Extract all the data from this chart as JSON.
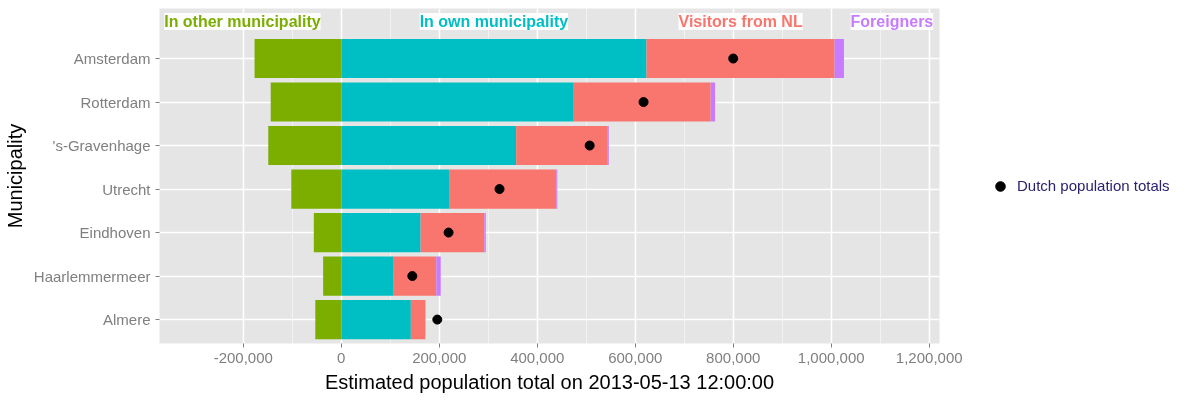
{
  "chart_data": {
    "type": "bar",
    "orientation": "horizontal",
    "stacked": true,
    "xlabel": "Estimated population total on 2013-05-13 12:00:00",
    "ylabel": "Municipality",
    "categories": [
      "Amsterdam",
      "Rotterdam",
      "'s-Gravenhage",
      "Utrecht",
      "Eindhoven",
      "Haarlemmermeer",
      "Almere"
    ],
    "series": [
      {
        "name": "In other municipality",
        "color": "#7cae00",
        "values": [
          -177000,
          -144000,
          -149000,
          -102000,
          -56000,
          -37000,
          -53000
        ]
      },
      {
        "name": "In own municipality",
        "color": "#00bfc4",
        "values": [
          623000,
          473000,
          357000,
          220000,
          162000,
          107000,
          142000
        ]
      },
      {
        "name": "Visitors from NL",
        "color": "#f8766d",
        "values": [
          384000,
          281000,
          187000,
          219000,
          130000,
          87000,
          29000
        ]
      },
      {
        "name": "Foreigners",
        "color": "#c77cff",
        "values": [
          19000,
          9000,
          2000,
          2000,
          3000,
          9000,
          1000
        ]
      },
      {
        "name": "Dutch population totals",
        "type": "scatter",
        "marker": "circle",
        "color": "#000000",
        "values": [
          800000,
          617000,
          507000,
          323000,
          219000,
          145000,
          196000
        ]
      }
    ],
    "xlim": [
      -371000,
      1221000
    ],
    "xticks": [
      {
        "value": -200000,
        "label": "-200,000"
      },
      0,
      {
        "value": 200000,
        "label": "200,000"
      },
      {
        "value": 400000,
        "label": "400,000"
      },
      {
        "value": 600000,
        "label": "600,000"
      },
      {
        "value": 800000,
        "label": "800,000"
      },
      {
        "value": 1000000,
        "label": "1,000,000"
      },
      {
        "value": 1200000,
        "label": "1,200,000"
      }
    ],
    "grid": true,
    "legend": "right"
  }
}
